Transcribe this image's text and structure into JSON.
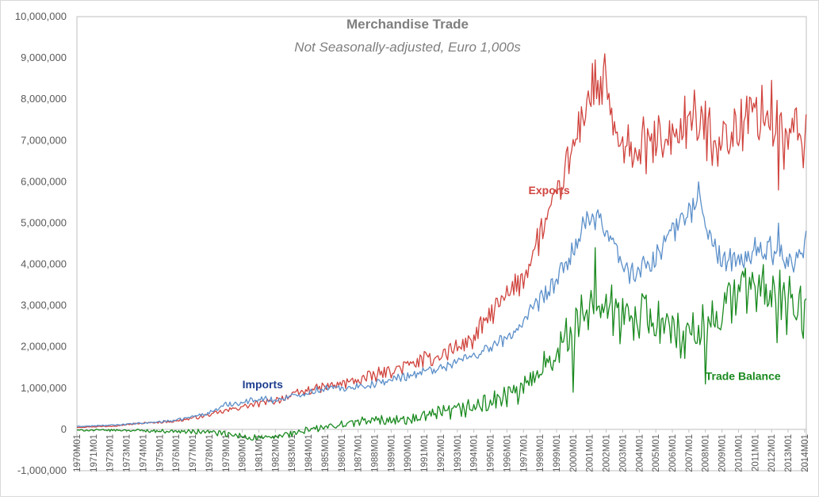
{
  "chart_data": {
    "type": "line",
    "title": "Merchandise Trade",
    "subtitle": "Not Seasonally-adjusted, Euro 1,000s",
    "xlabel": "",
    "ylabel": "",
    "ylim": [
      -1000000,
      10000000
    ],
    "y_ticks": [
      -1000000,
      0,
      1000000,
      2000000,
      3000000,
      4000000,
      5000000,
      6000000,
      7000000,
      8000000,
      9000000,
      10000000
    ],
    "y_tick_labels": [
      "-1,000,000",
      "0",
      "1,000,000",
      "2,000,000",
      "3,000,000",
      "4,000,000",
      "5,000,000",
      "6,000,000",
      "7,000,000",
      "8,000,000",
      "9,000,000",
      "10,000,000"
    ],
    "x_tick_labels": [
      "1970M01",
      "1971M01",
      "1972M01",
      "1973M01",
      "1974M01",
      "1975M01",
      "1976M01",
      "1977M01",
      "1978M01",
      "1979M01",
      "1980M01",
      "1981M01",
      "1982M01",
      "1983M01",
      "1984M01",
      "1985M01",
      "1986M01",
      "1987M01",
      "1988M01",
      "1989M01",
      "1990M01",
      "1991M01",
      "1992M01",
      "1993M01",
      "1994M01",
      "1995M01",
      "1996M01",
      "1997M01",
      "1998M01",
      "1999M01",
      "2000M01",
      "2001M01",
      "2002M01",
      "2003M01",
      "2004M01",
      "2005M01",
      "2006M01",
      "2007M01",
      "2008M01",
      "2009M01",
      "2010M01",
      "2011M01",
      "2012M01",
      "2013M01",
      "2014M01"
    ],
    "x_years": [
      1970,
      1971,
      1972,
      1973,
      1974,
      1975,
      1976,
      1977,
      1978,
      1979,
      1980,
      1981,
      1982,
      1983,
      1984,
      1985,
      1986,
      1987,
      1988,
      1989,
      1990,
      1991,
      1992,
      1993,
      1994,
      1995,
      1996,
      1997,
      1998,
      1999,
      2000,
      2001,
      2002,
      2003,
      2004,
      2005,
      2006,
      2007,
      2008,
      2009,
      2010,
      2011,
      2012,
      2013,
      2014
    ],
    "x_range_years": [
      1970,
      2014.1
    ],
    "frequency": "monthly",
    "series": [
      {
        "name": "Exports",
        "label": "Exports",
        "color": "#d0443e",
        "anchors": [
          [
            1970,
            50000
          ],
          [
            1972,
            80000
          ],
          [
            1974,
            150000
          ],
          [
            1976,
            200000
          ],
          [
            1978,
            350000
          ],
          [
            1980,
            550000
          ],
          [
            1982,
            700000
          ],
          [
            1984,
            950000
          ],
          [
            1986,
            1100000
          ],
          [
            1988,
            1300000
          ],
          [
            1990,
            1550000
          ],
          [
            1992,
            1800000
          ],
          [
            1994,
            2200000
          ],
          [
            1995,
            2800000
          ],
          [
            1996,
            3200000
          ],
          [
            1997,
            3700000
          ],
          [
            1998,
            4700000
          ],
          [
            1999,
            5600000
          ],
          [
            2000,
            6800000
          ],
          [
            2000.6,
            7700000
          ],
          [
            2001.3,
            8300000
          ],
          [
            2002,
            8100000
          ],
          [
            2002.6,
            7100000
          ],
          [
            2003,
            6600000
          ],
          [
            2004,
            6800000
          ],
          [
            2005,
            6900000
          ],
          [
            2006,
            7100000
          ],
          [
            2007,
            7500000
          ],
          [
            2008,
            7300000
          ],
          [
            2009,
            7000000
          ],
          [
            2010,
            7300000
          ],
          [
            2011,
            7700000
          ],
          [
            2012,
            7600000
          ],
          [
            2012.8,
            7000000
          ],
          [
            2013.5,
            7200000
          ],
          [
            2014.08,
            6900000
          ]
        ],
        "noise": [
          [
            1970,
            8000
          ],
          [
            1976,
            25000
          ],
          [
            1980,
            60000
          ],
          [
            1985,
            100000
          ],
          [
            1990,
            150000
          ],
          [
            1995,
            250000
          ],
          [
            1998,
            350000
          ],
          [
            2000,
            450000
          ],
          [
            2002,
            600000
          ],
          [
            2005,
            550000
          ],
          [
            2008,
            600000
          ],
          [
            2012,
            700000
          ],
          [
            2014.1,
            700000
          ]
        ]
      },
      {
        "name": "Imports",
        "label": "Imports",
        "color": "#5b8fc9",
        "anchors": [
          [
            1970,
            70000
          ],
          [
            1972,
            100000
          ],
          [
            1974,
            150000
          ],
          [
            1976,
            220000
          ],
          [
            1978,
            400000
          ],
          [
            1979,
            600000
          ],
          [
            1980,
            650000
          ],
          [
            1981,
            750000
          ],
          [
            1982,
            700000
          ],
          [
            1983,
            800000
          ],
          [
            1984,
            900000
          ],
          [
            1985,
            1000000
          ],
          [
            1986,
            1000000
          ],
          [
            1988,
            1100000
          ],
          [
            1990,
            1300000
          ],
          [
            1992,
            1500000
          ],
          [
            1994,
            1800000
          ],
          [
            1996,
            2200000
          ],
          [
            1997,
            2600000
          ],
          [
            1998,
            3100000
          ],
          [
            1999,
            3600000
          ],
          [
            2000,
            4300000
          ],
          [
            2000.6,
            4900000
          ],
          [
            2001.3,
            5100000
          ],
          [
            2002,
            4900000
          ],
          [
            2002.6,
            4400000
          ],
          [
            2003,
            3900000
          ],
          [
            2004,
            3800000
          ],
          [
            2005,
            4200000
          ],
          [
            2006,
            4800000
          ],
          [
            2007,
            5300000
          ],
          [
            2007.7,
            5500000
          ],
          [
            2008.2,
            4700000
          ],
          [
            2009,
            4100000
          ],
          [
            2010,
            4000000
          ],
          [
            2011,
            4300000
          ],
          [
            2012,
            4400000
          ],
          [
            2013,
            4000000
          ],
          [
            2013.7,
            4300000
          ],
          [
            2014.08,
            4500000
          ]
        ],
        "noise": [
          [
            1970,
            8000
          ],
          [
            1976,
            25000
          ],
          [
            1980,
            60000
          ],
          [
            1985,
            70000
          ],
          [
            1990,
            90000
          ],
          [
            1995,
            130000
          ],
          [
            1998,
            180000
          ],
          [
            2000,
            250000
          ],
          [
            2003,
            250000
          ],
          [
            2008,
            280000
          ],
          [
            2012,
            300000
          ],
          [
            2014.1,
            250000
          ]
        ]
      },
      {
        "name": "Trade Balance",
        "label": "Trade Balance",
        "color": "#1a8a1f",
        "anchors": [
          [
            1970,
            -20000
          ],
          [
            1973,
            -20000
          ],
          [
            1976,
            -50000
          ],
          [
            1978,
            -60000
          ],
          [
            1980,
            -180000
          ],
          [
            1981.5,
            -220000
          ],
          [
            1983,
            -100000
          ],
          [
            1984,
            -20000
          ],
          [
            1985,
            50000
          ],
          [
            1987,
            180000
          ],
          [
            1989,
            250000
          ],
          [
            1990,
            200000
          ],
          [
            1991,
            300000
          ],
          [
            1993,
            450000
          ],
          [
            1995,
            650000
          ],
          [
            1997,
            950000
          ],
          [
            1998,
            1500000
          ],
          [
            1999,
            1900000
          ],
          [
            2000,
            2400000
          ],
          [
            2000.6,
            2700000
          ],
          [
            2001.2,
            3200000
          ],
          [
            2002,
            3000000
          ],
          [
            2003,
            2600000
          ],
          [
            2004,
            2900000
          ],
          [
            2005,
            2700000
          ],
          [
            2006,
            2300000
          ],
          [
            2007,
            2100000
          ],
          [
            2008,
            2500000
          ],
          [
            2009,
            2900000
          ],
          [
            2010,
            3400000
          ],
          [
            2011,
            3500000
          ],
          [
            2012,
            3300000
          ],
          [
            2013,
            3000000
          ],
          [
            2013.7,
            2900000
          ],
          [
            2014.08,
            2500000
          ]
        ],
        "noise": [
          [
            1970,
            15000
          ],
          [
            1976,
            40000
          ],
          [
            1980,
            70000
          ],
          [
            1985,
            80000
          ],
          [
            1990,
            130000
          ],
          [
            1995,
            200000
          ],
          [
            1998,
            300000
          ],
          [
            2000,
            450000
          ],
          [
            2002,
            550000
          ],
          [
            2006,
            500000
          ],
          [
            2009,
            500000
          ],
          [
            2012,
            600000
          ],
          [
            2014.1,
            600000
          ]
        ]
      }
    ],
    "annotations": [
      {
        "text": "Exports",
        "series": "Exports",
        "x_year": 1997.3,
        "y": 5700000
      },
      {
        "text": "Imports",
        "series": "Imports",
        "x_year": 1980.0,
        "y": 1000000
      },
      {
        "text": "Trade Balance",
        "series": "Trade Balance",
        "x_year": 2008.0,
        "y": 1200000
      }
    ],
    "spikes": [
      {
        "series": "Exports",
        "x_year": 2001.9,
        "y": 9100000
      },
      {
        "series": "Exports",
        "x_year": 2001.3,
        "y": 8950000
      },
      {
        "series": "Exports",
        "x_year": 2012.4,
        "y": 5800000
      },
      {
        "series": "Imports",
        "x_year": 2007.6,
        "y": 6000000
      },
      {
        "series": "Imports",
        "x_year": 2012.4,
        "y": 5000000
      },
      {
        "series": "Trade Balance",
        "x_year": 2000.0,
        "y": 900000
      },
      {
        "series": "Trade Balance",
        "x_year": 2001.3,
        "y": 4400000
      },
      {
        "series": "Trade Balance",
        "x_year": 2008.0,
        "y": 1100000
      },
      {
        "series": "Trade Balance",
        "x_year": 2012.3,
        "y": 2100000
      }
    ],
    "grid": false,
    "legend": "none (inline series labels)"
  }
}
